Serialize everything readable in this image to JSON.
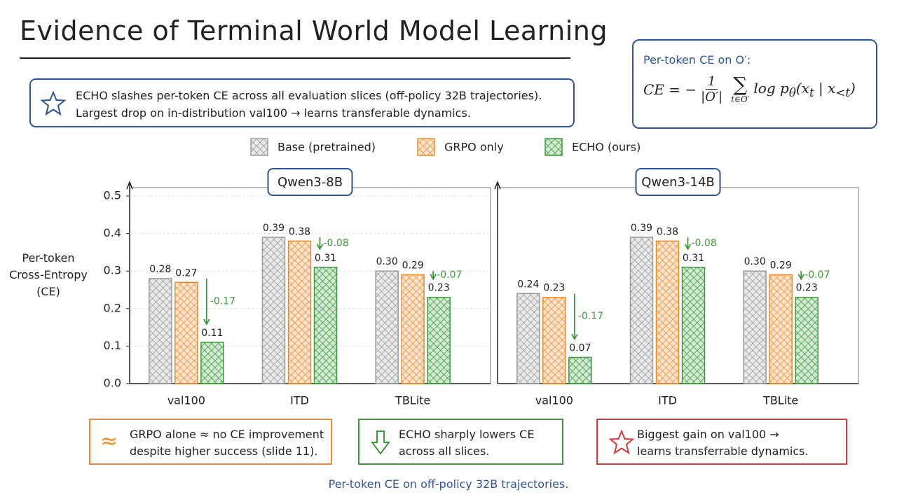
{
  "title": "Evidence of Terminal World Model Learning",
  "summary": {
    "lines": [
      "ECHO slashes per-token CE across all evaluation slices (off-policy 32B trajectories).",
      "Largest drop on in-distribution val100 → learns transferable dynamics."
    ]
  },
  "formula_box": {
    "label": "Per-token CE on O′:",
    "lhs": "CE = −",
    "numerator": "1",
    "denominator": "|O′|",
    "operator": "∑",
    "operator_sub": "t∈O′",
    "body": [
      "log p",
      "θ",
      "(x",
      "t",
      " | x",
      "<t",
      ")"
    ]
  },
  "legend": [
    {
      "name": "Base (pretrained)",
      "color": "#9a9a9a"
    },
    {
      "name": "GRPO only",
      "color": "#ef8a2a"
    },
    {
      "name": "ECHO (ours)",
      "color": "#3c9a3c"
    }
  ],
  "chart_data": [
    {
      "type": "bar",
      "subtitle": "Qwen3-8B",
      "ylabel": [
        "Per-token",
        "Cross-Entropy",
        "(CE)"
      ],
      "categories": [
        "val100",
        "ITD",
        "TBLite"
      ],
      "series": [
        {
          "color": "#9a9a9a",
          "values": [
            0.28,
            0.39,
            0.3
          ],
          "value_labels": [
            "0.28",
            "0.39",
            "0.30"
          ]
        },
        {
          "color": "#ef8a2a",
          "values": [
            0.27,
            0.38,
            0.29
          ],
          "value_labels": [
            "0.27",
            "0.38",
            "0.29"
          ]
        },
        {
          "color": "#3c9a3c",
          "values": [
            0.11,
            0.31,
            0.23
          ],
          "value_labels": [
            "0.11",
            "0.31",
            "0.23"
          ]
        }
      ],
      "deltas": [
        "-0.17",
        "-0.08",
        "-0.07"
      ],
      "delta_color": "#3c9a3c",
      "ylim": [
        0,
        0.5
      ],
      "yticks": [
        {
          "value": 0,
          "label": "0.0"
        },
        0.1,
        0.2,
        0.3,
        0.4,
        0.5
      ],
      "grid": true
    },
    {
      "type": "bar",
      "subtitle": "Qwen3-14B",
      "categories": [
        "val100",
        "ITD",
        "TBLite"
      ],
      "series": [
        {
          "color": "#9a9a9a",
          "values": [
            0.24,
            0.39,
            0.3
          ],
          "value_labels": [
            "0.24",
            "0.39",
            "0.30"
          ]
        },
        {
          "color": "#ef8a2a",
          "values": [
            0.23,
            0.38,
            0.29
          ],
          "value_labels": [
            "0.23",
            "0.38",
            "0.29"
          ]
        },
        {
          "color": "#3c9a3c",
          "values": [
            0.07,
            0.31,
            0.23
          ],
          "value_labels": [
            "0.07",
            "0.31",
            "0.23"
          ]
        }
      ],
      "deltas": [
        "-0.17",
        "-0.08",
        "-0.07"
      ],
      "delta_color": "#3c9a3c",
      "ylim": [
        0,
        0.5
      ]
    }
  ],
  "notes": [
    {
      "symbol": "≈",
      "color": "#ef8a2a",
      "lines": [
        "GRPO alone ≈ no CE improvement",
        "despite higher success (slide 11)."
      ]
    },
    {
      "color": "#3c9a3c",
      "lines": [
        "ECHO sharply lowers CE",
        "across all slices."
      ]
    },
    {
      "color": "#d23c3c",
      "lines": [
        "Biggest gain on val100 →",
        "learns transferrable dynamics."
      ]
    }
  ],
  "footer": "Per-token CE on off-policy 32B trajectories."
}
